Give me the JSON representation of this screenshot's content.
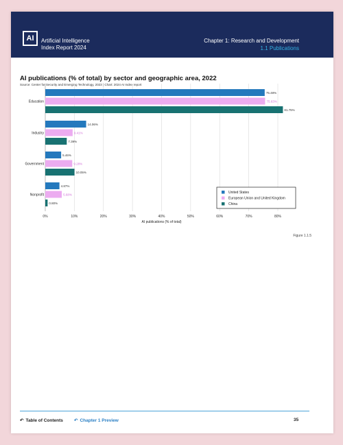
{
  "header": {
    "logo_text": "AI",
    "report_title_line1": "Artificial Intelligence",
    "report_title_line2": "Index Report 2024",
    "chapter": "Chapter 1: Research and Development",
    "section": "1.1 Publications",
    "bg_color": "#1b2b5c",
    "section_color": "#34b3e4"
  },
  "chart_data": {
    "type": "bar",
    "orientation": "horizontal",
    "title": "AI publications (% of total) by sector and geographic area, 2022",
    "source": "Source: Center for Security and Emerging Technology, 2023 | Chart: 2024 AI Index report",
    "categories": [
      "Education",
      "Industry",
      "Government",
      "Nonprofit"
    ],
    "series": [
      {
        "name": "United States",
        "color": "#2479bd",
        "values": [
          75.48,
          14.06,
          5.46,
          4.87
        ],
        "labels": [
          "75.48%",
          "14.06%",
          "5.46%",
          "4.87%"
        ]
      },
      {
        "name": "European Union and United Kingdom",
        "color": "#ecacf0",
        "values": [
          75.63,
          9.41,
          9.28,
          5.68
        ],
        "labels": [
          "75.63%",
          "9.41%",
          "9.28%",
          "5.68%"
        ]
      },
      {
        "name": "China",
        "color": "#187272",
        "values": [
          81.75,
          7.39,
          10.05,
          0.8
        ],
        "labels": [
          "81.75%",
          "7.39%",
          "10.05%",
          "0.80%"
        ]
      }
    ],
    "xlabel": "AI publications (% of total)",
    "xlim": [
      0,
      80
    ],
    "xticks": [
      "0%",
      "10%",
      "20%",
      "30%",
      "40%",
      "50%",
      "60%",
      "70%",
      "80%"
    ],
    "grid": true,
    "legend_position": "bottom-right"
  },
  "figure_label": "Figure 1.1.5",
  "footer": {
    "toc_icon": "return-arrow-icon",
    "toc_label": "Table of Contents",
    "preview_label": "Chapter 1 Preview",
    "page_number": "35"
  }
}
